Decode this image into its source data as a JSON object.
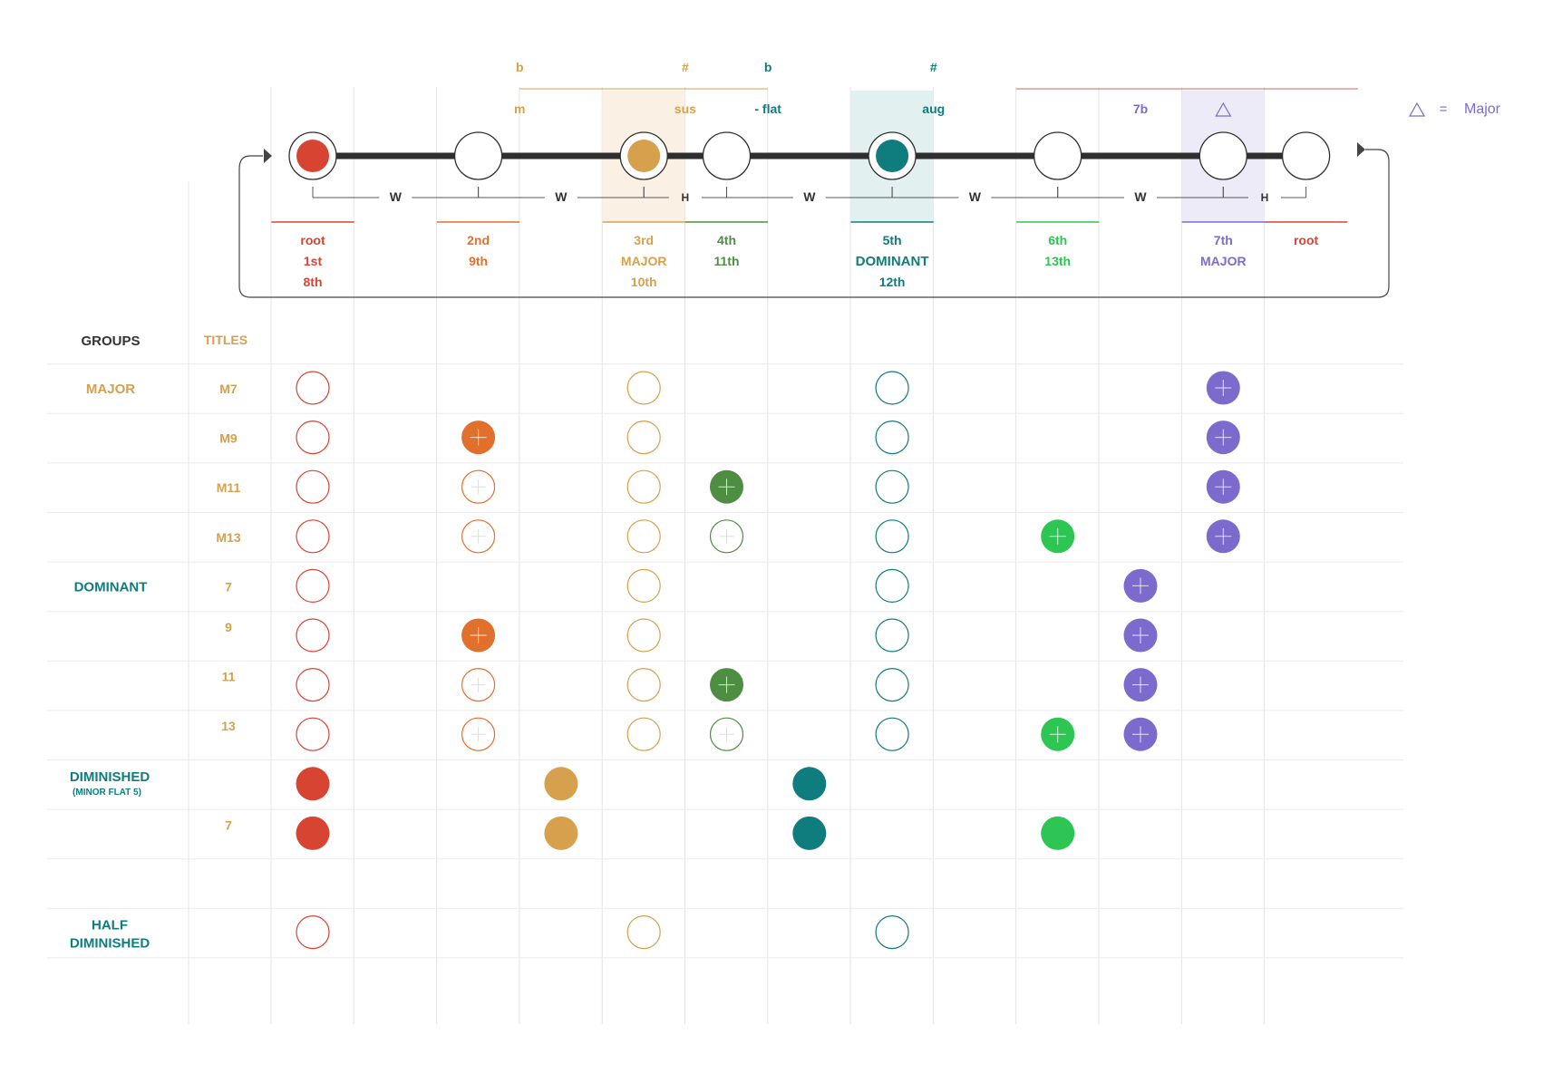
{
  "colors": {
    "red": "#D84432",
    "orange": "#E0702C",
    "gold": "#D6A04C",
    "green": "#4E8E43",
    "bright_green": "#2DC653",
    "teal": "#0F7C7E",
    "purple": "#7C6BCD",
    "dark": "#2f2f2f",
    "grid": "#e4e4e4"
  },
  "legend": {
    "symbol": "triangle-icon",
    "equals": "=",
    "label": "Major"
  },
  "accidentals": [
    {
      "col": 3,
      "text": "b",
      "color": "gold"
    },
    {
      "col": 5,
      "text": "#",
      "color": "gold"
    },
    {
      "col": 6,
      "text": "b",
      "color": "teal"
    },
    {
      "col": 8,
      "text": "#",
      "color": "teal"
    }
  ],
  "modifiers": [
    {
      "col": 3,
      "text": "m",
      "color": "gold"
    },
    {
      "col": 5,
      "text": "sus",
      "color": "gold"
    },
    {
      "col": 6,
      "text": "- flat",
      "color": "teal"
    },
    {
      "col": 8,
      "text": "aug",
      "color": "teal"
    },
    {
      "col": 10,
      "text": "7b",
      "color": "purple"
    }
  ],
  "scale_notes": [
    {
      "col": 0,
      "fill": "red"
    },
    {
      "col": 2,
      "fill": null
    },
    {
      "col": 4,
      "fill": "gold"
    },
    {
      "col": 5,
      "fill": null
    },
    {
      "col": 7,
      "fill": "teal"
    },
    {
      "col": 9,
      "fill": null
    },
    {
      "col": 11,
      "fill": null
    },
    {
      "col": 12,
      "fill": null
    }
  ],
  "steps": [
    {
      "label": "W",
      "between": [
        0,
        2
      ]
    },
    {
      "label": "W",
      "between": [
        2,
        4
      ]
    },
    {
      "label": "H",
      "between": [
        4,
        5
      ]
    },
    {
      "label": "W",
      "between": [
        5,
        7
      ]
    },
    {
      "label": "W",
      "between": [
        7,
        9
      ]
    },
    {
      "label": "W",
      "between": [
        9,
        11
      ]
    },
    {
      "label": "H",
      "between": [
        11,
        12
      ]
    }
  ],
  "degrees": [
    {
      "col": 0,
      "color": "red",
      "lines": [
        "root",
        "1st",
        "8th"
      ]
    },
    {
      "col": 2,
      "color": "orange",
      "lines": [
        "2nd",
        "9th"
      ]
    },
    {
      "col": 4,
      "color": "gold",
      "lines": [
        "3rd",
        "MAJOR",
        "10th"
      ]
    },
    {
      "col": 5,
      "color": "green",
      "lines": [
        "4th",
        "11th"
      ]
    },
    {
      "col": 7,
      "color": "teal",
      "lines": [
        "5th",
        "DOMINANT",
        "12th"
      ]
    },
    {
      "col": 9,
      "color": "bright_green",
      "lines": [
        "6th",
        "13th"
      ]
    },
    {
      "col": 11,
      "color": "purple",
      "lines": [
        "7th",
        "MAJOR"
      ]
    },
    {
      "col": 12,
      "color": "red",
      "lines": [
        "root"
      ]
    }
  ],
  "headers": {
    "groups": "GROUPS",
    "titles": "TITLES"
  },
  "rows": [
    {
      "group": "MAJOR",
      "group_color": "gold",
      "title": "M7",
      "marks": [
        {
          "col": 0,
          "color": "red",
          "style": "outline"
        },
        {
          "col": 4,
          "color": "gold",
          "style": "outline"
        },
        {
          "col": 7,
          "color": "teal",
          "style": "outline"
        },
        {
          "col": 11,
          "color": "purple",
          "style": "plus"
        }
      ]
    },
    {
      "group": "",
      "title": "M9",
      "marks": [
        {
          "col": 0,
          "color": "red",
          "style": "outline"
        },
        {
          "col": 2,
          "color": "orange",
          "style": "plus"
        },
        {
          "col": 4,
          "color": "gold",
          "style": "outline"
        },
        {
          "col": 7,
          "color": "teal",
          "style": "outline"
        },
        {
          "col": 11,
          "color": "purple",
          "style": "plus"
        }
      ]
    },
    {
      "group": "",
      "title": "M11",
      "marks": [
        {
          "col": 0,
          "color": "red",
          "style": "outline"
        },
        {
          "col": 2,
          "color": "orange",
          "style": "outline-plus"
        },
        {
          "col": 4,
          "color": "gold",
          "style": "outline"
        },
        {
          "col": 5,
          "color": "green",
          "style": "plus"
        },
        {
          "col": 7,
          "color": "teal",
          "style": "outline"
        },
        {
          "col": 11,
          "color": "purple",
          "style": "plus"
        }
      ]
    },
    {
      "group": "",
      "title": "M13",
      "marks": [
        {
          "col": 0,
          "color": "red",
          "style": "outline"
        },
        {
          "col": 2,
          "color": "orange",
          "style": "outline-plus"
        },
        {
          "col": 4,
          "color": "gold",
          "style": "outline"
        },
        {
          "col": 5,
          "color": "green",
          "style": "outline-plus"
        },
        {
          "col": 7,
          "color": "teal",
          "style": "outline"
        },
        {
          "col": 9,
          "color": "bright_green",
          "style": "plus"
        },
        {
          "col": 11,
          "color": "purple",
          "style": "plus"
        }
      ]
    },
    {
      "group": "DOMINANT",
      "group_color": "teal",
      "title": "7",
      "marks": [
        {
          "col": 0,
          "color": "red",
          "style": "outline"
        },
        {
          "col": 4,
          "color": "gold",
          "style": "outline"
        },
        {
          "col": 7,
          "color": "teal",
          "style": "outline"
        },
        {
          "col": 10,
          "color": "purple",
          "style": "plus"
        }
      ]
    },
    {
      "group": "",
      "title": "9",
      "marks": [
        {
          "col": 0,
          "color": "red",
          "style": "outline"
        },
        {
          "col": 2,
          "color": "orange",
          "style": "plus"
        },
        {
          "col": 4,
          "color": "gold",
          "style": "outline"
        },
        {
          "col": 7,
          "color": "teal",
          "style": "outline"
        },
        {
          "col": 10,
          "color": "purple",
          "style": "plus"
        }
      ]
    },
    {
      "group": "",
      "title": "11",
      "marks": [
        {
          "col": 0,
          "color": "red",
          "style": "outline"
        },
        {
          "col": 2,
          "color": "orange",
          "style": "outline-plus"
        },
        {
          "col": 4,
          "color": "gold",
          "style": "outline"
        },
        {
          "col": 5,
          "color": "green",
          "style": "plus"
        },
        {
          "col": 7,
          "color": "teal",
          "style": "outline"
        },
        {
          "col": 10,
          "color": "purple",
          "style": "plus"
        }
      ]
    },
    {
      "group": "",
      "title": "13",
      "marks": [
        {
          "col": 0,
          "color": "red",
          "style": "outline"
        },
        {
          "col": 2,
          "color": "orange",
          "style": "outline-plus"
        },
        {
          "col": 4,
          "color": "gold",
          "style": "outline"
        },
        {
          "col": 5,
          "color": "green",
          "style": "outline-plus"
        },
        {
          "col": 7,
          "color": "teal",
          "style": "outline"
        },
        {
          "col": 9,
          "color": "bright_green",
          "style": "plus"
        },
        {
          "col": 10,
          "color": "purple",
          "style": "plus"
        }
      ]
    },
    {
      "group": "DIMINISHED",
      "group_sub": "(MINOR FLAT 5)",
      "group_color": "teal",
      "title": "",
      "marks": [
        {
          "col": 0,
          "color": "red",
          "style": "solid"
        },
        {
          "col": 3,
          "color": "gold",
          "style": "solid"
        },
        {
          "col": 6,
          "color": "teal",
          "style": "solid"
        }
      ]
    },
    {
      "group": "",
      "title": "7",
      "marks": [
        {
          "col": 0,
          "color": "red",
          "style": "solid"
        },
        {
          "col": 3,
          "color": "gold",
          "style": "solid"
        },
        {
          "col": 6,
          "color": "teal",
          "style": "solid"
        },
        {
          "col": 9,
          "color": "bright_green",
          "style": "solid"
        }
      ]
    },
    {
      "group": "",
      "title": "",
      "marks": []
    },
    {
      "group": "HALF",
      "group_line2": "DIMINISHED",
      "group_color": "teal",
      "title": "",
      "marks": [
        {
          "col": 0,
          "color": "red",
          "style": "outline"
        },
        {
          "col": 4,
          "color": "gold",
          "style": "outline"
        },
        {
          "col": 7,
          "color": "teal",
          "style": "outline"
        }
      ]
    }
  ]
}
